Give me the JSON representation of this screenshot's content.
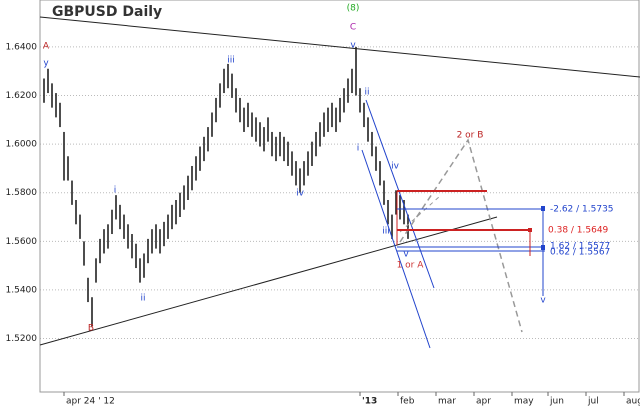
{
  "chart_data": {
    "type": "ohlc",
    "title": "GBPUSD Daily",
    "color": "#222",
    "xlim": [
      0,
      150
    ],
    "ylim": [
      1.498,
      1.656
    ],
    "xticks": [
      {
        "value": 6,
        "label": "apr 24 ' 12"
      },
      {
        "value": 80,
        "label": "'13"
      },
      {
        "value": 89.5,
        "label": "feb"
      },
      {
        "value": 99,
        "label": "mar"
      },
      {
        "value": 108.5,
        "label": "apr"
      },
      {
        "value": 118,
        "label": "may"
      },
      {
        "value": 127,
        "label": "jun"
      },
      {
        "value": 136.5,
        "label": "jul"
      },
      {
        "value": 146,
        "label": "aug"
      }
    ],
    "yticks": [
      {
        "value": 1.52,
        "label": "1.5200"
      },
      {
        "value": 1.54,
        "label": "1.5400"
      },
      {
        "value": 1.56,
        "label": "1.5600"
      },
      {
        "value": 1.58,
        "label": "1.5800"
      },
      {
        "value": 1.6,
        "label": "1.6000"
      },
      {
        "value": 1.62,
        "label": "1.6200"
      },
      {
        "value": 1.64,
        "label": "1.6400"
      }
    ],
    "grid": true,
    "x": [
      1,
      2,
      3,
      4,
      5,
      6,
      7,
      8,
      9,
      10,
      11,
      12,
      13,
      14,
      15,
      16,
      17,
      18,
      19,
      20,
      21,
      22,
      23,
      24,
      25,
      26,
      27,
      28,
      29,
      30,
      31,
      32,
      33,
      34,
      35,
      36,
      37,
      38,
      39,
      40,
      41,
      42,
      43,
      44,
      45,
      46,
      47,
      48,
      49,
      50,
      51,
      52,
      53,
      54,
      55,
      56,
      57,
      58,
      59,
      60,
      61,
      62,
      63,
      64,
      65,
      66,
      67,
      68,
      69,
      70,
      71,
      72,
      73,
      74,
      75,
      76,
      77,
      78,
      79,
      80,
      81,
      82,
      83,
      84,
      85,
      86,
      87,
      88,
      89,
      90,
      91,
      92
    ],
    "high": [
      1.627,
      1.631,
      1.625,
      1.621,
      1.617,
      1.605,
      1.595,
      1.585,
      1.577,
      1.571,
      1.56,
      1.545,
      1.537,
      1.553,
      1.561,
      1.565,
      1.567,
      1.573,
      1.579,
      1.575,
      1.571,
      1.567,
      1.563,
      1.559,
      1.553,
      1.555,
      1.561,
      1.565,
      1.567,
      1.565,
      1.568,
      1.571,
      1.575,
      1.577,
      1.58,
      1.583,
      1.587,
      1.591,
      1.595,
      1.599,
      1.603,
      1.607,
      1.613,
      1.619,
      1.625,
      1.631,
      1.633,
      1.629,
      1.623,
      1.619,
      1.615,
      1.617,
      1.613,
      1.611,
      1.609,
      1.607,
      1.611,
      1.605,
      1.603,
      1.605,
      1.603,
      1.601,
      1.597,
      1.593,
      1.59,
      1.593,
      1.597,
      1.601,
      1.605,
      1.609,
      1.613,
      1.615,
      1.617,
      1.615,
      1.619,
      1.623,
      1.627,
      1.631,
      1.64,
      1.623,
      1.617,
      1.611,
      1.605,
      1.599,
      1.593,
      1.585,
      1.577,
      1.571,
      1.581,
      1.579,
      1.577,
      1.571
    ],
    "low": [
      1.617,
      1.621,
      1.615,
      1.611,
      1.607,
      1.585,
      1.585,
      1.575,
      1.567,
      1.561,
      1.55,
      1.535,
      1.525,
      1.543,
      1.551,
      1.555,
      1.557,
      1.563,
      1.569,
      1.565,
      1.561,
      1.557,
      1.553,
      1.549,
      1.543,
      1.545,
      1.551,
      1.555,
      1.557,
      1.555,
      1.558,
      1.561,
      1.565,
      1.567,
      1.57,
      1.573,
      1.577,
      1.581,
      1.585,
      1.589,
      1.593,
      1.597,
      1.603,
      1.609,
      1.615,
      1.621,
      1.623,
      1.619,
      1.613,
      1.609,
      1.605,
      1.607,
      1.603,
      1.601,
      1.599,
      1.597,
      1.601,
      1.595,
      1.593,
      1.595,
      1.593,
      1.591,
      1.587,
      1.583,
      1.58,
      1.583,
      1.587,
      1.591,
      1.595,
      1.599,
      1.603,
      1.605,
      1.607,
      1.605,
      1.609,
      1.613,
      1.617,
      1.621,
      1.62,
      1.613,
      1.607,
      1.601,
      1.595,
      1.589,
      1.583,
      1.575,
      1.567,
      1.561,
      1.571,
      1.569,
      1.567,
      1.561
    ],
    "annotations": [
      {
        "text": "A",
        "color": "#b22"
      },
      {
        "text": "y",
        "color": "#24c"
      },
      {
        "text": "B",
        "color": "#b22"
      },
      {
        "text": "i",
        "color": "#24c"
      },
      {
        "text": "ii",
        "color": "#24c"
      },
      {
        "text": "iii",
        "color": "#24c"
      },
      {
        "text": "iv",
        "color": "#24c"
      },
      {
        "text": "v",
        "color": "#24c"
      },
      {
        "text": "C",
        "color": "#a2a"
      },
      {
        "text": "(8)",
        "color": "#2a2"
      },
      {
        "text": "ii",
        "color": "#24c"
      },
      {
        "text": "i",
        "color": "#24c"
      },
      {
        "text": "iv",
        "color": "#24c"
      },
      {
        "text": "iii",
        "color": "#24c"
      },
      {
        "text": "v",
        "color": "#24c"
      },
      {
        "text": "1 or A",
        "color": "#c33"
      },
      {
        "text": "2 or B",
        "color": "#b22"
      },
      {
        "text": "-2.62 / 1.5735",
        "color": "#24c"
      },
      {
        "text": "0.38 / 1.5649",
        "color": "#d22"
      },
      {
        "text": "1.62 / 1.5577",
        "color": "#24c"
      },
      {
        "text": "0.62 / 1.5567",
        "color": "#24c"
      },
      {
        "text": "v",
        "color": "#24c"
      }
    ]
  }
}
